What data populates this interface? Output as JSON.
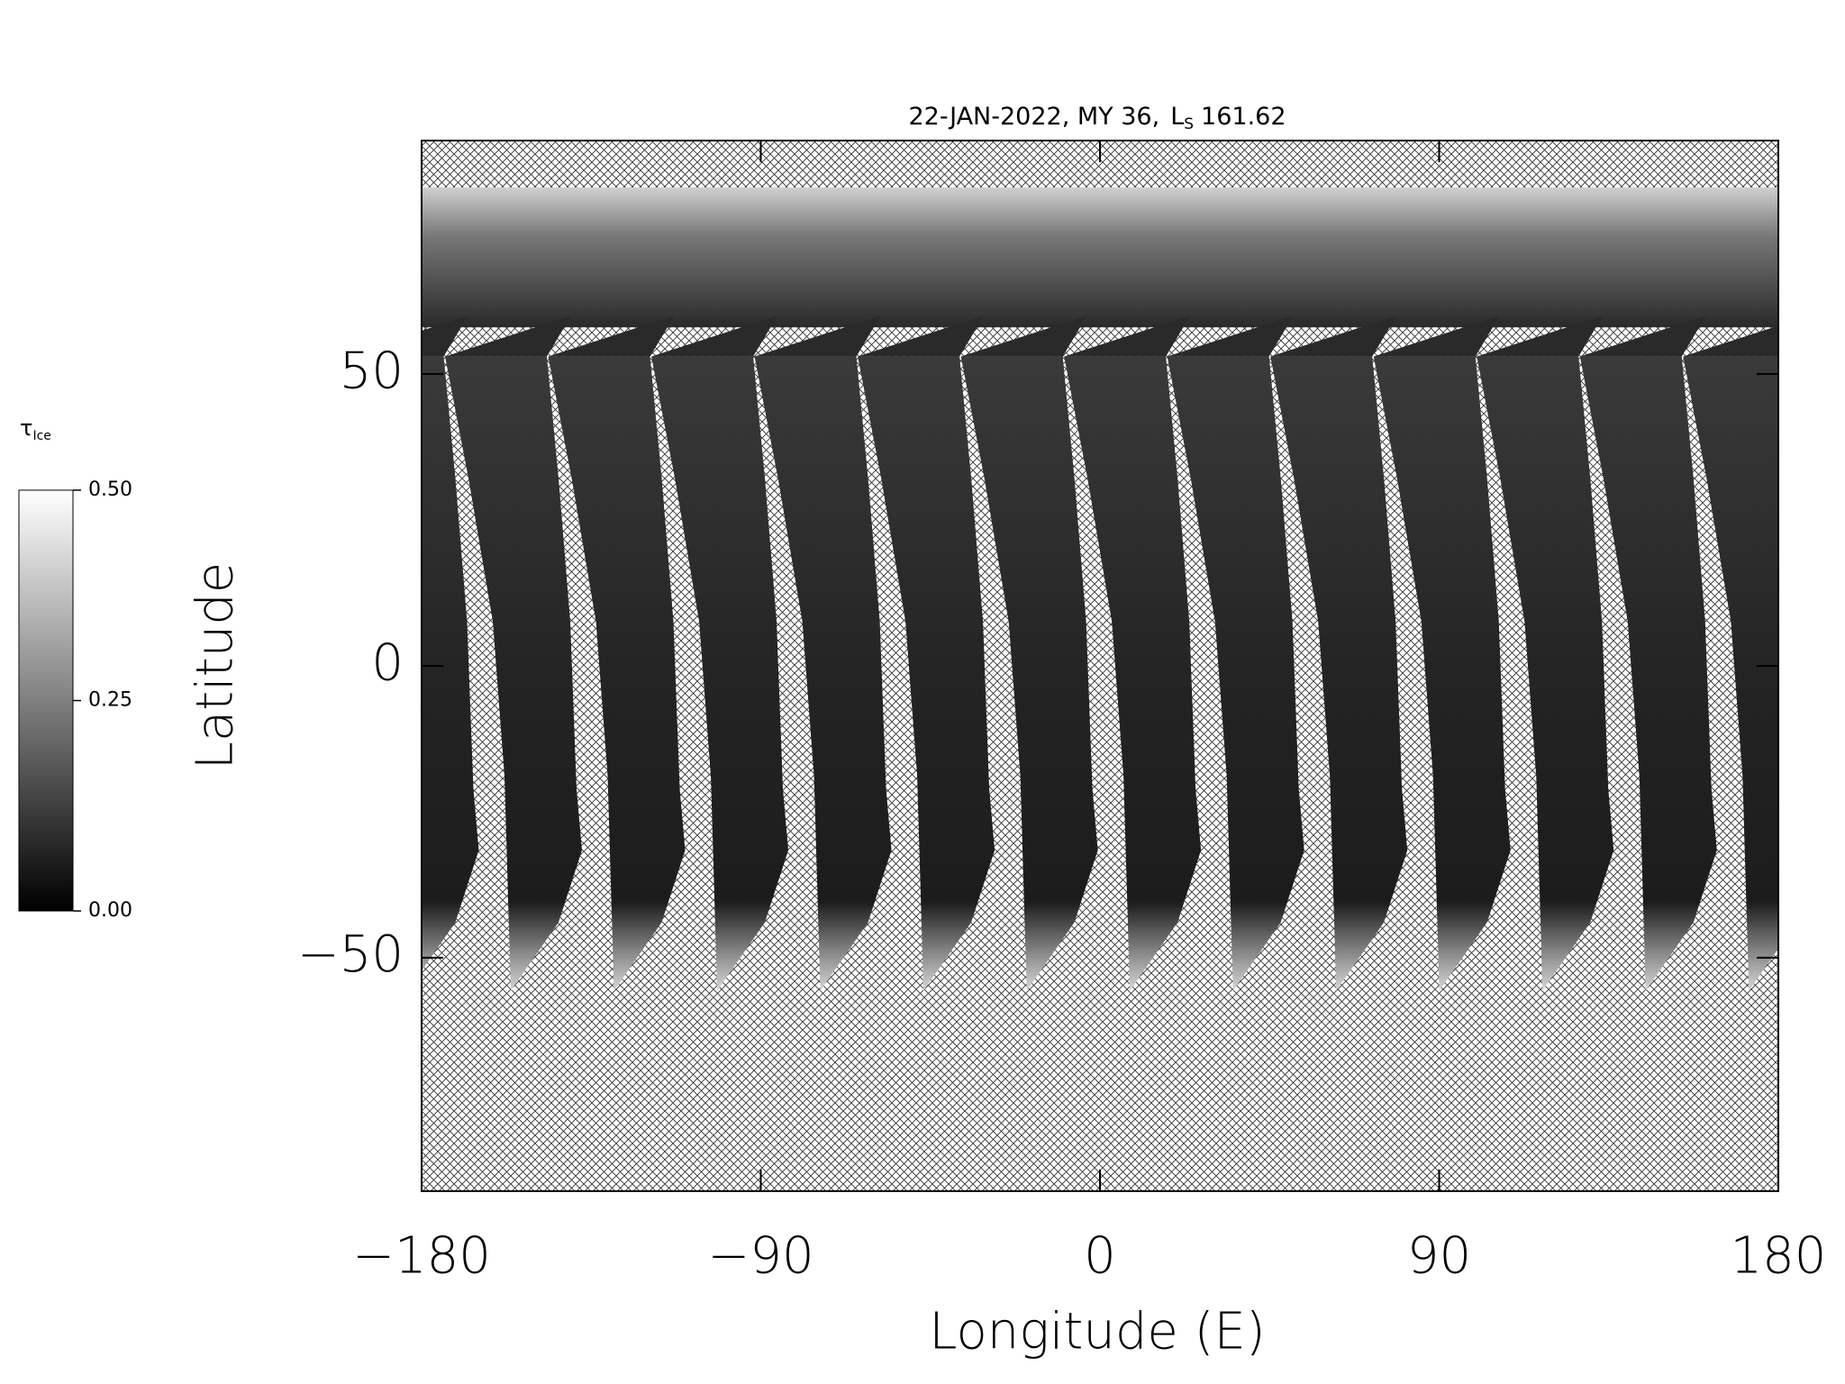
{
  "chart_data": {
    "type": "map",
    "title": "22-JAN-2022, MY 36,",
    "title_symbol": "L",
    "title_symbol_subscript": "S",
    "title_value": "161.62",
    "x_label": "Longitude (E)",
    "y_label": "Latitude",
    "xlim": [
      -180,
      180
    ],
    "ylim": [
      -90,
      90
    ],
    "xticks": [
      {
        "value": -180,
        "label": "−180"
      },
      {
        "value": -90,
        "label": "−90"
      },
      0,
      90,
      180
    ],
    "yticks": [
      {
        "value": -50,
        "label": "−50"
      },
      0,
      50
    ],
    "colorbar": {
      "label": "τ",
      "label_subscript": "Ice",
      "clim": [
        0,
        0.5
      ],
      "ticks": [
        {
          "value": 0,
          "label": "0.00"
        },
        {
          "value": 0.25,
          "label": "0.25"
        },
        {
          "value": 0.5,
          "label": "0.50"
        }
      ]
    }
  }
}
